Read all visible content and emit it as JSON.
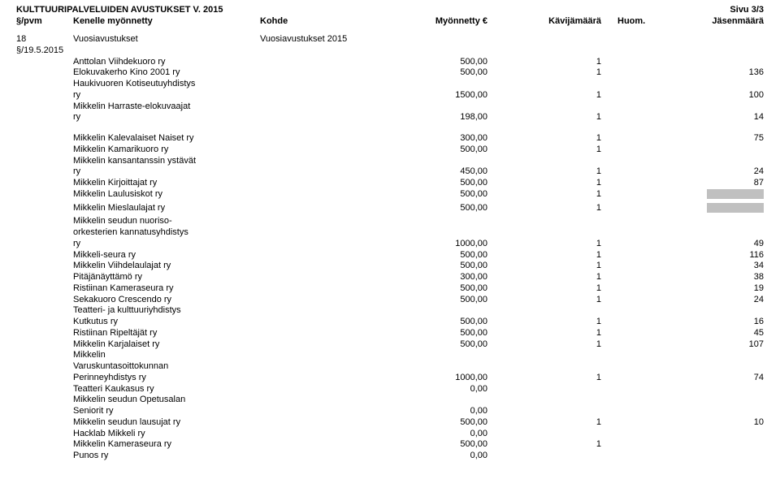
{
  "page_title": "KULTTUURIPALVELUIDEN AVUSTUKSET V. 2015",
  "page_number": "Sivu 3/3",
  "headers": {
    "date": "§/pvm",
    "recipient": "Kenelle myönnetty",
    "kohde": "Kohde",
    "amount": "Myönnetty €",
    "visits": "Kävijämäärä",
    "huom": "Huom.",
    "jasen": "Jäsenmäärä"
  },
  "section": {
    "date": "18 §/19.5.2015",
    "type": "Vuosiavustukset",
    "kohde": "Vuosiavustukset 2015"
  },
  "rows": [
    {
      "name": "Anttolan Viihdekuoro ry",
      "amount": "500,00",
      "visits": "1",
      "jasen": ""
    },
    {
      "name": "Elokuvakerho Kino 2001 ry",
      "amount": "500,00",
      "visits": "1",
      "jasen": "136"
    },
    {
      "name": "Haukivuoren Kotiseutuyhdistys",
      "wrap": true
    },
    {
      "name": "ry",
      "amount": "1500,00",
      "visits": "1",
      "jasen": "100"
    },
    {
      "name": "Mikkelin Harraste-elokuvaajat",
      "wrap": true
    },
    {
      "name": "ry",
      "amount": "198,00",
      "visits": "1",
      "jasen": "14"
    },
    {
      "gap": true
    },
    {
      "name": "Mikkelin Kalevalaiset Naiset ry",
      "amount": "300,00",
      "visits": "1",
      "jasen": "75"
    },
    {
      "name": "Mikkelin Kamarikuoro ry",
      "amount": "500,00",
      "visits": "1",
      "jasen": ""
    },
    {
      "name": "Mikkelin kansantanssin ystävät",
      "wrap": true
    },
    {
      "name": "ry",
      "amount": "450,00",
      "visits": "1",
      "jasen": "24"
    },
    {
      "name": "Mikkelin Kirjoittajat ry",
      "amount": "500,00",
      "visits": "1",
      "jasen": "87"
    },
    {
      "name": "Mikkelin Laulusiskot ry",
      "amount": "500,00",
      "visits": "1",
      "jasen": "",
      "shade": true
    },
    {
      "name": "Mikkelin Mieslaulajat ry",
      "amount": "500,00",
      "visits": "1",
      "jasen": "",
      "shade": true
    },
    {
      "name": "Mikkelin seudun nuoriso-",
      "wrap": true
    },
    {
      "name": "orkesterien kannatusyhdistys",
      "wrap": true
    },
    {
      "name": "ry",
      "amount": "1000,00",
      "visits": "1",
      "jasen": "49"
    },
    {
      "name": "Mikkeli-seura ry",
      "amount": "500,00",
      "visits": "1",
      "jasen": "116"
    },
    {
      "name": "Mikkelin Viihdelaulajat ry",
      "amount": "500,00",
      "visits": "1",
      "jasen": "34"
    },
    {
      "name": "Pitäjänäyttämö ry",
      "amount": "300,00",
      "visits": "1",
      "jasen": "38"
    },
    {
      "name": "Ristiinan Kameraseura ry",
      "amount": "500,00",
      "visits": "1",
      "jasen": "19"
    },
    {
      "name": "Sekakuoro Crescendo ry",
      "amount": "500,00",
      "visits": "1",
      "jasen": "24"
    },
    {
      "name": "Teatteri- ja kulttuuriyhdistys",
      "wrap": true
    },
    {
      "name": "Kutkutus ry",
      "amount": "500,00",
      "visits": "1",
      "jasen": "16"
    },
    {
      "name": "Ristiinan Ripeltäjät ry",
      "amount": "500,00",
      "visits": "1",
      "jasen": "45"
    },
    {
      "name": "Mikkelin Karjalaiset ry",
      "amount": "500,00",
      "visits": "1",
      "jasen": "107"
    },
    {
      "name": "Mikkelin",
      "wrap": true
    },
    {
      "name": "Varuskuntasoittokunnan",
      "wrap": true
    },
    {
      "name": "Perinneyhdistys ry",
      "amount": "1000,00",
      "visits": "1",
      "jasen": "74"
    },
    {
      "name": "Teatteri Kaukasus ry",
      "amount": "0,00",
      "visits": "",
      "jasen": ""
    },
    {
      "name": "Mikkelin seudun Opetusalan",
      "wrap": true
    },
    {
      "name": "Seniorit ry",
      "amount": "0,00",
      "visits": "",
      "jasen": ""
    },
    {
      "name": "Mikkelin seudun lausujat ry",
      "amount": "500,00",
      "visits": "1",
      "jasen": "10"
    },
    {
      "name": "Hacklab Mikkeli ry",
      "amount": "0,00",
      "visits": "",
      "jasen": ""
    },
    {
      "name": "Mikkelin Kameraseura ry",
      "amount": "500,00",
      "visits": "1",
      "jasen": ""
    },
    {
      "name": "Punos ry",
      "amount": "0,00",
      "visits": "",
      "jasen": ""
    }
  ]
}
